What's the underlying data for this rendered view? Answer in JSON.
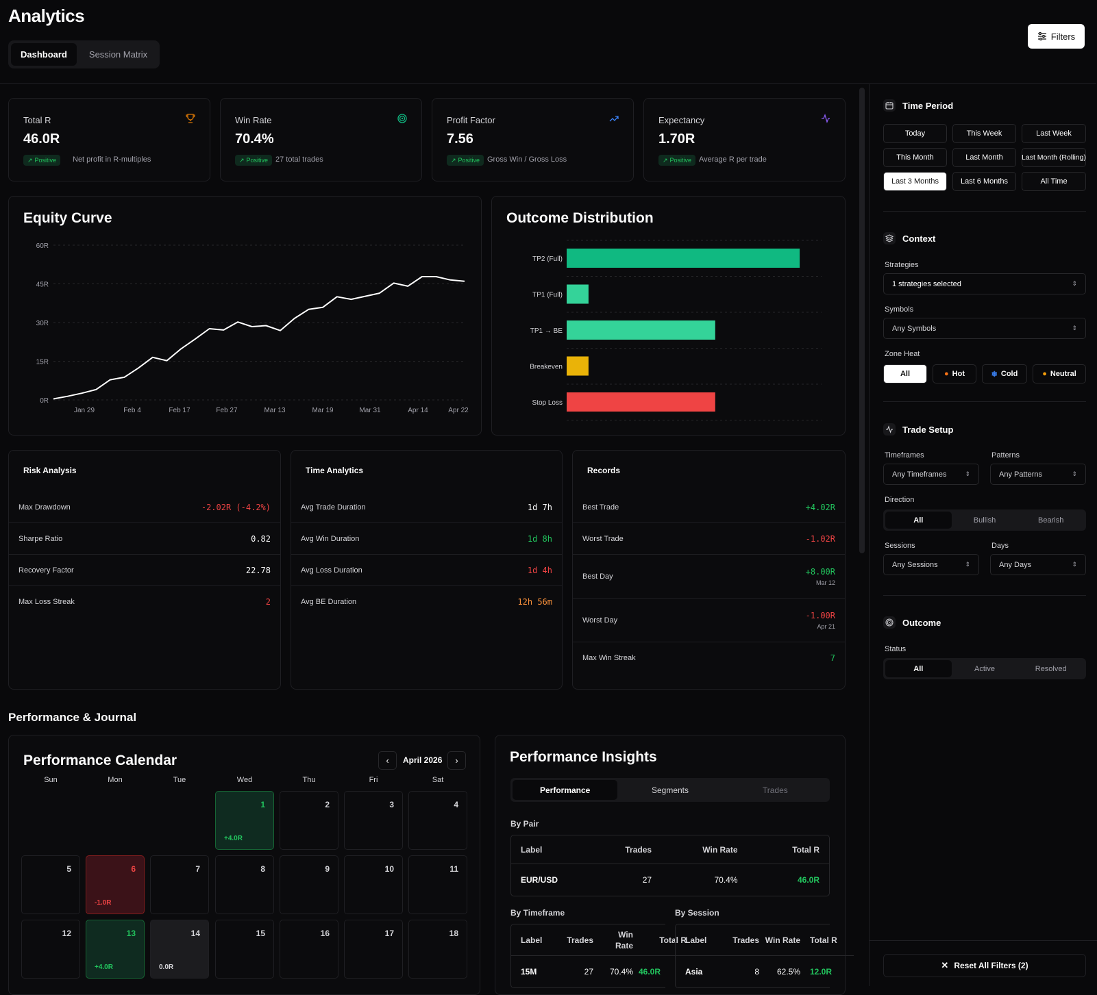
{
  "header": {
    "title": "Analytics",
    "tabs": [
      "Dashboard",
      "Session Matrix"
    ],
    "filters_label": "Filters"
  },
  "stats": [
    {
      "label": "Total R",
      "value": "46.0R",
      "badge": "Positive",
      "desc": "Net profit in R-multiples",
      "icon": "trophy-icon",
      "icon_color": "#d97706"
    },
    {
      "label": "Win Rate",
      "value": "70.4%",
      "badge": "Positive",
      "desc": "27 total trades",
      "icon": "target-icon",
      "icon_color": "#10b981"
    },
    {
      "label": "Profit Factor",
      "value": "7.56",
      "badge": "Positive",
      "desc": "Gross Win / Gross Loss",
      "icon": "trending-up-icon",
      "icon_color": "#3b82f6"
    },
    {
      "label": "Expectancy",
      "value": "1.70R",
      "badge": "Positive",
      "desc": "Average R per trade",
      "icon": "activity-icon",
      "icon_color": "#8b5cf6"
    }
  ],
  "equity": {
    "title": "Equity Curve",
    "y_ticks": [
      "60R",
      "45R",
      "30R",
      "15R",
      "0R"
    ],
    "x_ticks": [
      "Jan 29",
      "Feb 4",
      "Feb 17",
      "Feb 27",
      "Mar 13",
      "Mar 19",
      "Mar 31",
      "Apr 14",
      "Apr 22"
    ]
  },
  "chart_data": {
    "type": "line",
    "ylim": [
      0,
      60
    ],
    "y": [
      0.4,
      1.4,
      2.6,
      4.0,
      7.8,
      8.8,
      12.4,
      16.5,
      15.2,
      19.8,
      23.6,
      27.6,
      27.1,
      30.2,
      28.4,
      28.8,
      26.9,
      31.6,
      35.1,
      35.9,
      40.0,
      39.0,
      40.2,
      41.4,
      45.3,
      44.1,
      47.8,
      47.8,
      46.5,
      46.0
    ]
  },
  "outcome": {
    "title": "Outcome Distribution",
    "bars": [
      {
        "label": "TP2 (Full)",
        "value": 16,
        "color": "#10b981"
      },
      {
        "label": "TP1 (Full)",
        "value": 1.5,
        "color": "#34d399"
      },
      {
        "label": "TP1 → BE",
        "value": 10.2,
        "color": "#34d399"
      },
      {
        "label": "Breakeven",
        "value": 1.5,
        "color": "#eab308"
      },
      {
        "label": "Stop Loss",
        "value": 10.2,
        "color": "#ef4444"
      }
    ],
    "max": 17.5
  },
  "risk": {
    "title": "Risk Analysis",
    "rows": [
      {
        "k": "Max Drawdown",
        "v": "-2.02R (-4.2%)"
      },
      {
        "k": "Sharpe Ratio",
        "v": "0.82"
      },
      {
        "k": "Recovery Factor",
        "v": "22.78"
      },
      {
        "k": "Max Loss Streak",
        "v": "2"
      }
    ]
  },
  "time": {
    "title": "Time Analytics",
    "rows": [
      {
        "k": "Avg Trade Duration",
        "v": "1d 7h"
      },
      {
        "k": "Avg Win Duration",
        "v": "1d 8h"
      },
      {
        "k": "Avg Loss Duration",
        "v": "1d 4h"
      },
      {
        "k": "Avg BE Duration",
        "v": "12h 56m"
      }
    ]
  },
  "records": {
    "title": "Records",
    "rows": [
      {
        "k": "Best Trade",
        "v": "+4.02R"
      },
      {
        "k": "Worst Trade",
        "v": "-1.02R"
      },
      {
        "k": "Best Day",
        "v": "+8.00R",
        "sub": "Mar 12"
      },
      {
        "k": "Worst Day",
        "v": "-1.00R",
        "sub": "Apr 21"
      },
      {
        "k": "Max Win Streak",
        "v": "7"
      }
    ]
  },
  "perf_section": "Performance & Journal",
  "calendar": {
    "title": "Performance Calendar",
    "month": "April 2026",
    "weekdays": [
      "Sun",
      "Mon",
      "Tue",
      "Wed",
      "Thu",
      "Fri",
      "Sat"
    ],
    "days": [
      {
        "n": "1",
        "r": "+4.0R"
      },
      {
        "n": "2",
        "r": ""
      },
      {
        "n": "3",
        "r": ""
      },
      {
        "n": "4",
        "r": ""
      },
      {
        "n": "5",
        "r": ""
      },
      {
        "n": "6",
        "r": "-1.0R"
      },
      {
        "n": "7",
        "r": ""
      },
      {
        "n": "8",
        "r": ""
      },
      {
        "n": "9",
        "r": ""
      },
      {
        "n": "10",
        "r": ""
      },
      {
        "n": "11",
        "r": ""
      },
      {
        "n": "12",
        "r": ""
      },
      {
        "n": "13",
        "r": "+4.0R"
      },
      {
        "n": "14",
        "r": "0.0R"
      },
      {
        "n": "15",
        "r": ""
      },
      {
        "n": "16",
        "r": ""
      },
      {
        "n": "17",
        "r": ""
      },
      {
        "n": "18",
        "r": ""
      }
    ]
  },
  "insights": {
    "title": "Performance Insights",
    "tabs": [
      "Performance",
      "Segments",
      "Trades"
    ],
    "by_pair": {
      "label": "By Pair",
      "headers": [
        "Label",
        "Trades",
        "Win Rate",
        "Total R"
      ],
      "row": [
        "EUR/USD",
        "27",
        "70.4%",
        "46.0R"
      ]
    },
    "by_timeframe": {
      "label": "By Timeframe",
      "headers": [
        "Label",
        "Trades",
        "Win Rate",
        "Total R"
      ],
      "row": [
        "15M",
        "27",
        "70.4%",
        "46.0R"
      ]
    },
    "by_session": {
      "label": "By Session",
      "headers": [
        "Label",
        "Trades",
        "Win Rate",
        "Total R"
      ],
      "row": [
        "Asia",
        "8",
        "62.5%",
        "12.0R"
      ]
    }
  },
  "sidebar": {
    "time_period": {
      "title": "Time Period",
      "buttons": [
        "Today",
        "This Week",
        "Last Week",
        "This Month",
        "Last Month",
        "Last Month (Rolling)",
        "Last 3 Months",
        "Last 6 Months",
        "All Time"
      ],
      "selected": "Last 3 Months"
    },
    "context": {
      "title": "Context",
      "strategies_label": "Strategies",
      "strategies_value": "1 strategies selected",
      "symbols_label": "Symbols",
      "symbols_value": "Any Symbols",
      "zone_heat_label": "Zone Heat",
      "zone_heat": [
        "All",
        "Hot",
        "Cold",
        "Neutral"
      ]
    },
    "trade_setup": {
      "title": "Trade Setup",
      "timeframes_label": "Timeframes",
      "timeframes_value": "Any Timeframes",
      "patterns_label": "Patterns",
      "patterns_value": "Any Patterns",
      "direction_label": "Direction",
      "direction": [
        "All",
        "Bullish",
        "Bearish"
      ],
      "sessions_label": "Sessions",
      "sessions_value": "Any Sessions",
      "days_label": "Days",
      "days_value": "Any Days"
    },
    "outcome": {
      "title": "Outcome",
      "status_label": "Status",
      "status": [
        "All",
        "Active",
        "Resolved"
      ]
    },
    "reset_label": "Reset All Filters (2)"
  }
}
